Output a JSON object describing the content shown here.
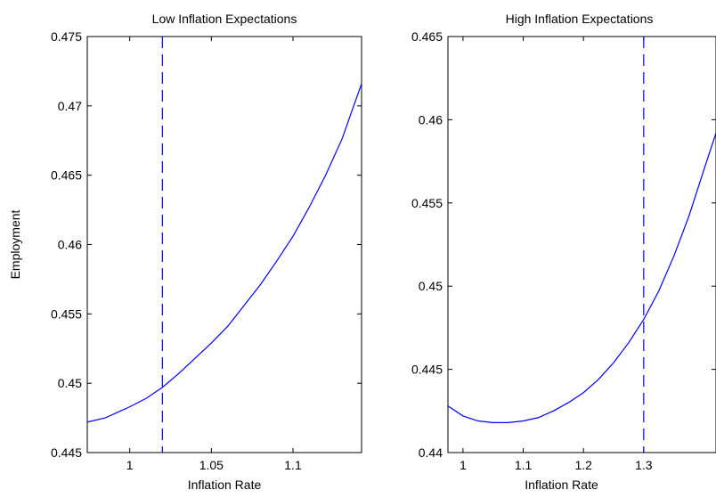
{
  "chart_data": [
    {
      "type": "line",
      "title": "Low Inflation Expectations",
      "xlabel": "Inflation Rate",
      "ylabel": "Employment",
      "xlim": [
        0.974,
        1.142
      ],
      "ylim": [
        0.445,
        0.475
      ],
      "xticks": [
        1,
        1.05,
        1.1
      ],
      "yticks": [
        0.445,
        0.45,
        0.455,
        0.46,
        0.465,
        0.47,
        0.475
      ],
      "xtick_labels": [
        "1",
        "1.05",
        "1.1"
      ],
      "ytick_labels": [
        "0.445",
        "0.45",
        "0.455",
        "0.46",
        "0.465",
        "0.47",
        "0.475"
      ],
      "grid": false,
      "vline": {
        "x": 1.02,
        "style": "dashed"
      },
      "series": [
        {
          "color": "#0000ff",
          "x": [
            0.974,
            0.985,
            1.0,
            1.01,
            1.02,
            1.03,
            1.04,
            1.05,
            1.06,
            1.07,
            1.08,
            1.09,
            1.1,
            1.11,
            1.12,
            1.13,
            1.142
          ],
          "y": [
            0.4472,
            0.4475,
            0.4483,
            0.4489,
            0.4497,
            0.4507,
            0.4518,
            0.4529,
            0.4541,
            0.4556,
            0.4571,
            0.4588,
            0.4606,
            0.4627,
            0.465,
            0.4676,
            0.4716
          ]
        }
      ]
    },
    {
      "type": "line",
      "title": "High Inflation Expectations",
      "xlabel": "Inflation Rate",
      "ylabel": "",
      "xlim": [
        0.975,
        1.42
      ],
      "ylim": [
        0.44,
        0.465
      ],
      "xticks": [
        1,
        1.1,
        1.2,
        1.3
      ],
      "yticks": [
        0.44,
        0.445,
        0.45,
        0.455,
        0.46,
        0.465
      ],
      "xtick_labels": [
        "1",
        "1.1",
        "1.2",
        "1.3"
      ],
      "ytick_labels": [
        "0.44",
        "0.445",
        "0.45",
        "0.455",
        "0.46",
        "0.465"
      ],
      "grid": false,
      "vline": {
        "x": 1.3,
        "style": "dashed"
      },
      "series": [
        {
          "color": "#0000ff",
          "x": [
            0.975,
            1.0,
            1.025,
            1.05,
            1.075,
            1.1,
            1.125,
            1.15,
            1.175,
            1.2,
            1.225,
            1.25,
            1.275,
            1.3,
            1.325,
            1.35,
            1.375,
            1.4,
            1.42
          ],
          "y": [
            0.4428,
            0.4422,
            0.4419,
            0.4418,
            0.4418,
            0.4419,
            0.4421,
            0.4425,
            0.443,
            0.4436,
            0.4444,
            0.4454,
            0.4466,
            0.448,
            0.4497,
            0.4518,
            0.4542,
            0.457,
            0.4592
          ]
        }
      ]
    }
  ]
}
